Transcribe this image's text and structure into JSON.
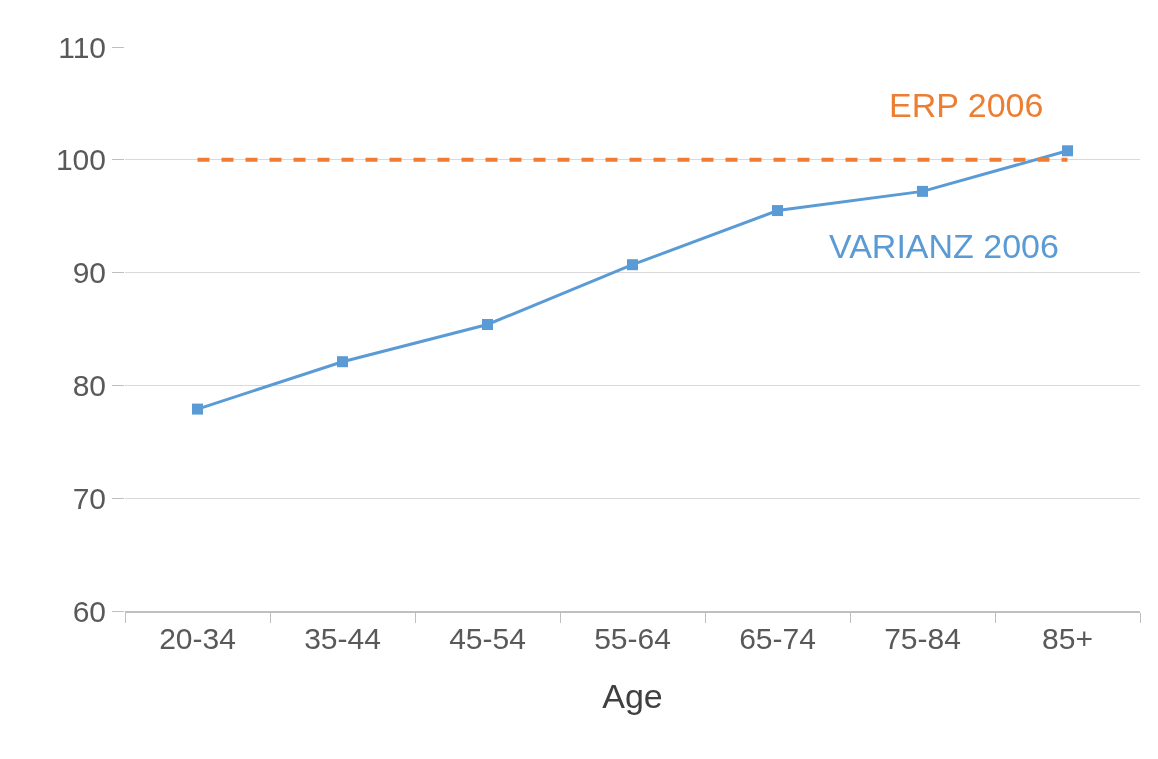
{
  "chart_data": {
    "type": "line",
    "xlabel": "Age",
    "categories": [
      "20-34",
      "35-44",
      "45-54",
      "55-64",
      "65-74",
      "75-84",
      "85+"
    ],
    "series": [
      {
        "name": "VARIANZ 2006",
        "color": "#5b9bd5",
        "marker": "square",
        "line_style": "solid",
        "values": [
          77.9,
          82.1,
          85.4,
          90.7,
          95.5,
          97.2,
          100.8
        ]
      },
      {
        "name": "ERP 2006",
        "color": "#ed7d31",
        "marker": "none",
        "line_style": "dashed",
        "values": [
          100,
          100,
          100,
          100,
          100,
          100,
          100
        ]
      }
    ],
    "ylim": [
      60,
      110
    ],
    "yticks": [
      60,
      70,
      80,
      90,
      100,
      110
    ],
    "grid": "y",
    "legend": false
  }
}
